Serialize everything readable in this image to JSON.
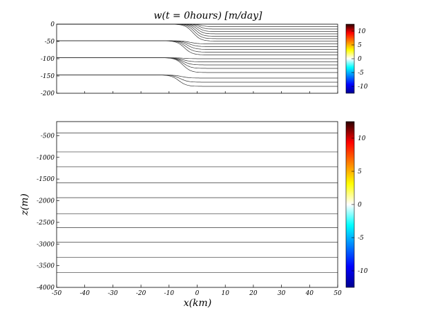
{
  "chart_data": [
    {
      "type": "line",
      "title": "w(t = 0hours)   [m/day]",
      "xlabel": "",
      "ylabel": "",
      "xlim": [
        -50,
        50
      ],
      "ylim": [
        -200,
        0
      ],
      "xticks": [],
      "yticks": [
        0,
        -50,
        -100,
        -150,
        -200
      ],
      "ytick_labels": [
        "0",
        "-50",
        "-100",
        "-150",
        "-200"
      ],
      "series": [
        {
          "left_depth": 0,
          "right_depth": -7,
          "center": 1.5,
          "width": 1.6
        },
        {
          "left_depth": 0,
          "right_depth": -14,
          "center": 1.0,
          "width": 1.8
        },
        {
          "left_depth": 0,
          "right_depth": -21,
          "center": 0.5,
          "width": 2.0
        },
        {
          "left_depth": 0,
          "right_depth": -28,
          "center": 0.0,
          "width": 2.2
        },
        {
          "left_depth": 0,
          "right_depth": -35,
          "center": -0.5,
          "width": 2.4
        },
        {
          "left_depth": 0,
          "right_depth": -42,
          "center": -1.0,
          "width": 2.6
        },
        {
          "left_depth": 0,
          "right_depth": -49,
          "center": -1.5,
          "width": 2.8
        },
        {
          "left_depth": -48,
          "right_depth": -57,
          "center": -2.5,
          "width": 2.8
        },
        {
          "left_depth": -48,
          "right_depth": -65,
          "center": -3.0,
          "width": 2.8
        },
        {
          "left_depth": -48,
          "right_depth": -73,
          "center": -3.5,
          "width": 2.8
        },
        {
          "left_depth": -48,
          "right_depth": -81,
          "center": -4.0,
          "width": 2.8
        },
        {
          "left_depth": -48,
          "right_depth": -89,
          "center": -4.5,
          "width": 2.8
        },
        {
          "left_depth": -97,
          "right_depth": -100,
          "center": -5.0,
          "width": 2.8
        },
        {
          "left_depth": -97,
          "right_depth": -109,
          "center": -5.0,
          "width": 2.8
        },
        {
          "left_depth": -97,
          "right_depth": -118,
          "center": -5.0,
          "width": 2.8
        },
        {
          "left_depth": -97,
          "right_depth": -128,
          "center": -5.0,
          "width": 2.8
        },
        {
          "left_depth": -97,
          "right_depth": -140,
          "center": -5.0,
          "width": 2.8
        },
        {
          "left_depth": -147,
          "right_depth": -156,
          "center": -5.5,
          "width": 2.8
        },
        {
          "left_depth": -147,
          "right_depth": -168,
          "center": -6.0,
          "width": 2.8
        },
        {
          "left_depth": -147,
          "right_depth": -180,
          "center": -6.5,
          "width": 2.8
        }
      ],
      "colorbar": {
        "ticks": [
          10,
          5,
          0,
          -5,
          -10
        ],
        "tick_labels": [
          "10",
          "5",
          "0",
          "-5",
          "-10"
        ],
        "range": [
          -12.5,
          12.5
        ]
      }
    },
    {
      "type": "line",
      "title": "",
      "xlabel": "x(km)",
      "ylabel": "z(m)",
      "xlim": [
        -50,
        50
      ],
      "ylim": [
        -4000,
        -175
      ],
      "xticks": [
        -50,
        -40,
        -30,
        -20,
        -10,
        0,
        10,
        20,
        30,
        40,
        50
      ],
      "xtick_labels": [
        "-50",
        "-40",
        "-30",
        "-20",
        "-10",
        "0",
        "10",
        "20",
        "30",
        "40",
        "50"
      ],
      "yticks": [
        -500,
        -1000,
        -1500,
        -2000,
        -2500,
        -3000,
        -3500,
        -4000
      ],
      "ytick_labels": [
        "-500",
        "-1000",
        "-1500",
        "-2000",
        "-2500",
        "-3000",
        "-3500",
        "-4000"
      ],
      "series_depths": [
        -440,
        -875,
        -1220,
        -1590,
        -1930,
        -2300,
        -2620,
        -2960,
        -3310,
        -3660
      ],
      "colorbar": {
        "ticks": [
          10,
          5,
          0,
          -5,
          -10
        ],
        "tick_labels": [
          "10",
          "5",
          "0",
          "-5",
          "-10"
        ],
        "range": [
          -12.5,
          12.5
        ]
      }
    }
  ]
}
